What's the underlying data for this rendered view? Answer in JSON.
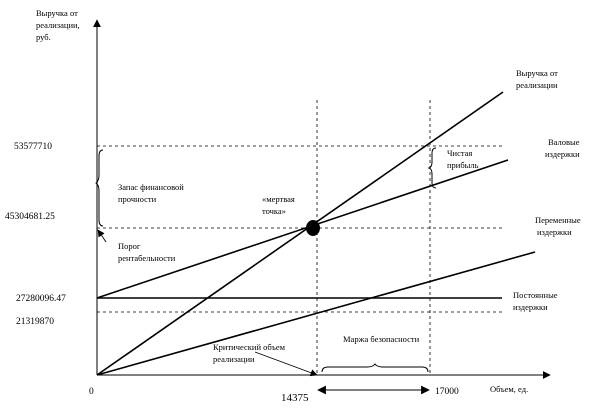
{
  "axes": {
    "y_label": [
      "Выручка от",
      "реализации,",
      "руб."
    ],
    "x_label": "Объем, ед.",
    "origin": "0"
  },
  "y_ticks": [
    "53577710",
    "45304681.25",
    "27280096.47",
    "21319870"
  ],
  "x_ticks": [
    "14375",
    "17000"
  ],
  "lines": {
    "revenue": [
      "Выручка от",
      "реализации"
    ],
    "gross_costs": [
      "Валовые",
      "издержки"
    ],
    "variable_costs": [
      "Переменные",
      "издержки"
    ],
    "fixed_costs": [
      "Постоянные",
      "издержки"
    ]
  },
  "annotations": {
    "financial_margin": [
      "Запас финансовой",
      "прочности"
    ],
    "profitability_threshold": [
      "Порог",
      "рентабельности"
    ],
    "breakeven_point": [
      "«мертвая",
      "точка»"
    ],
    "net_profit": [
      "Чистая",
      "прибыль"
    ],
    "critical_volume": [
      "Критический объем",
      "реализации"
    ],
    "safety_margin": "Маржа безопасности"
  },
  "chart_data": {
    "type": "line",
    "xlabel": "Объем, ед.",
    "ylabel": "Выручка от реализации, руб.",
    "x": [
      0,
      14375,
      17000
    ],
    "series": [
      {
        "name": "Выручка от реализации",
        "values": [
          0,
          45304681.25,
          53577710
        ]
      },
      {
        "name": "Валовые издержки",
        "values": [
          27280096.47,
          45304681.25,
          48597170
        ]
      },
      {
        "name": "Переменные издержки",
        "values": [
          0,
          18024585,
          21319870
        ]
      },
      {
        "name": "Постоянные издержки",
        "values": [
          27280096.47,
          27280096.47,
          27280096.47
        ]
      }
    ],
    "breakeven": {
      "x": 14375,
      "y": 45304681.25
    }
  }
}
